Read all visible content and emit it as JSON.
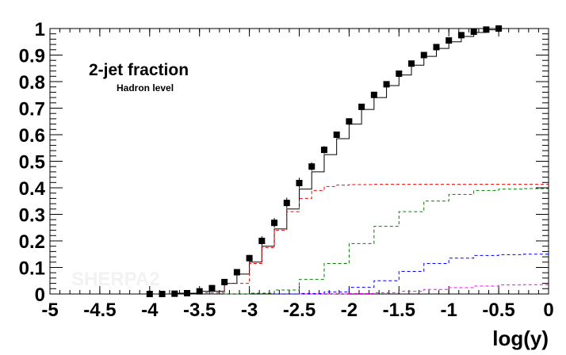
{
  "chart_data": {
    "type": "line",
    "title": "",
    "xlabel": "log(y)",
    "ylabel": "",
    "xlim": [
      -5,
      0
    ],
    "ylim": [
      0,
      1
    ],
    "x_ticks": [
      "-5",
      "-4.5",
      "-4",
      "-3.5",
      "-3",
      "-2.5",
      "-2",
      "-1.5",
      "-1",
      "-0.5",
      "0"
    ],
    "y_ticks": [
      "0",
      "0.1",
      "0.2",
      "0.3",
      "0.4",
      "0.5",
      "0.6",
      "0.7",
      "0.8",
      "0.9",
      "1"
    ],
    "annotations": {
      "title": "2-jet fraction",
      "subtitle": "Hadron level",
      "watermark": "SHERPA2"
    },
    "grid": false,
    "legend": "none",
    "data_points": {
      "marker": "filled-square",
      "color": "#000000",
      "points": [
        {
          "x": -4.0,
          "y": 0.0,
          "err": 0.0
        },
        {
          "x": -3.875,
          "y": 0.0,
          "err": 0.0
        },
        {
          "x": -3.75,
          "y": 0.001,
          "err": 0.001
        },
        {
          "x": -3.625,
          "y": 0.003,
          "err": 0.002
        },
        {
          "x": -3.5,
          "y": 0.01,
          "err": 0.003
        },
        {
          "x": -3.375,
          "y": 0.022,
          "err": 0.004
        },
        {
          "x": -3.25,
          "y": 0.045,
          "err": 0.006
        },
        {
          "x": -3.125,
          "y": 0.082,
          "err": 0.008
        },
        {
          "x": -3.0,
          "y": 0.135,
          "err": 0.012
        },
        {
          "x": -2.875,
          "y": 0.2,
          "err": 0.018
        },
        {
          "x": -2.75,
          "y": 0.268,
          "err": 0.018
        },
        {
          "x": -2.625,
          "y": 0.343,
          "err": 0.02
        },
        {
          "x": -2.5,
          "y": 0.418,
          "err": 0.02
        },
        {
          "x": -2.375,
          "y": 0.48,
          "err": 0.016
        },
        {
          "x": -2.25,
          "y": 0.543,
          "err": 0.014
        },
        {
          "x": -2.125,
          "y": 0.6,
          "err": 0.012
        },
        {
          "x": -2.0,
          "y": 0.65,
          "err": 0.012
        },
        {
          "x": -1.875,
          "y": 0.705,
          "err": 0.01
        },
        {
          "x": -1.75,
          "y": 0.75,
          "err": 0.01
        },
        {
          "x": -1.625,
          "y": 0.79,
          "err": 0.008
        },
        {
          "x": -1.5,
          "y": 0.83,
          "err": 0.007
        },
        {
          "x": -1.375,
          "y": 0.868,
          "err": 0.006
        },
        {
          "x": -1.25,
          "y": 0.9,
          "err": 0.005
        },
        {
          "x": -1.125,
          "y": 0.93,
          "err": 0.004
        },
        {
          "x": -1.0,
          "y": 0.955,
          "err": 0.003
        },
        {
          "x": -0.875,
          "y": 0.975,
          "err": 0.003
        },
        {
          "x": -0.75,
          "y": 0.988,
          "err": 0.002
        },
        {
          "x": -0.625,
          "y": 0.996,
          "err": 0.001
        },
        {
          "x": -0.5,
          "y": 1.0,
          "err": 0.0
        }
      ]
    },
    "series": [
      {
        "style": "solid-step",
        "color": "#000000",
        "x": [
          -4.0,
          -3.75,
          -3.5,
          -3.25,
          -3.125,
          -3.0,
          -2.875,
          -2.75,
          -2.625,
          -2.5,
          -2.375,
          -2.25,
          -2.125,
          -2.0,
          -1.875,
          -1.75,
          -1.625,
          -1.5,
          -1.375,
          -1.25,
          -1.125,
          -1.0,
          -0.875,
          -0.75,
          -0.625,
          -0.5
        ],
        "values": [
          0.0,
          0.003,
          0.01,
          0.04,
          0.075,
          0.12,
          0.18,
          0.245,
          0.32,
          0.395,
          0.46,
          0.525,
          0.585,
          0.64,
          0.695,
          0.74,
          0.785,
          0.825,
          0.862,
          0.895,
          0.925,
          0.95,
          0.97,
          0.985,
          0.995,
          1.0
        ]
      },
      {
        "style": "dashed",
        "color": "#ff0000",
        "x": [
          -3.5,
          -3.25,
          -3.0,
          -2.875,
          -2.75,
          -2.625,
          -2.5,
          -2.375,
          -2.25,
          -2.125,
          -2.0,
          -1.75,
          -1.5,
          -1.0,
          -0.5,
          0.0
        ],
        "values": [
          0.005,
          0.04,
          0.115,
          0.175,
          0.24,
          0.31,
          0.36,
          0.39,
          0.405,
          0.41,
          0.412,
          0.413,
          0.413,
          0.413,
          0.413,
          0.413
        ]
      },
      {
        "style": "dashed",
        "color": "#008000",
        "x": [
          -3.25,
          -3.0,
          -2.75,
          -2.5,
          -2.25,
          -2.0,
          -1.75,
          -1.5,
          -1.25,
          -1.0,
          -0.75,
          -0.5,
          -0.25,
          0.0
        ],
        "values": [
          0.0,
          0.003,
          0.015,
          0.055,
          0.115,
          0.19,
          0.255,
          0.31,
          0.35,
          0.375,
          0.39,
          0.395,
          0.397,
          0.397
        ]
      },
      {
        "style": "dashed",
        "color": "#0000ff",
        "x": [
          -2.75,
          -2.5,
          -2.25,
          -2.0,
          -1.75,
          -1.5,
          -1.25,
          -1.0,
          -0.75,
          -0.5,
          -0.25,
          0.0
        ],
        "values": [
          0.0,
          0.002,
          0.008,
          0.025,
          0.05,
          0.085,
          0.115,
          0.135,
          0.145,
          0.148,
          0.15,
          0.15
        ]
      },
      {
        "style": "dashed",
        "color": "#ff00ff",
        "x": [
          -2.5,
          -2.25,
          -2.0,
          -1.75,
          -1.5,
          -1.25,
          -1.0,
          -0.75,
          -0.5,
          -0.25,
          0.0
        ],
        "values": [
          0.0,
          0.0,
          0.002,
          0.005,
          0.01,
          0.017,
          0.024,
          0.03,
          0.034,
          0.035,
          0.035
        ]
      }
    ]
  }
}
